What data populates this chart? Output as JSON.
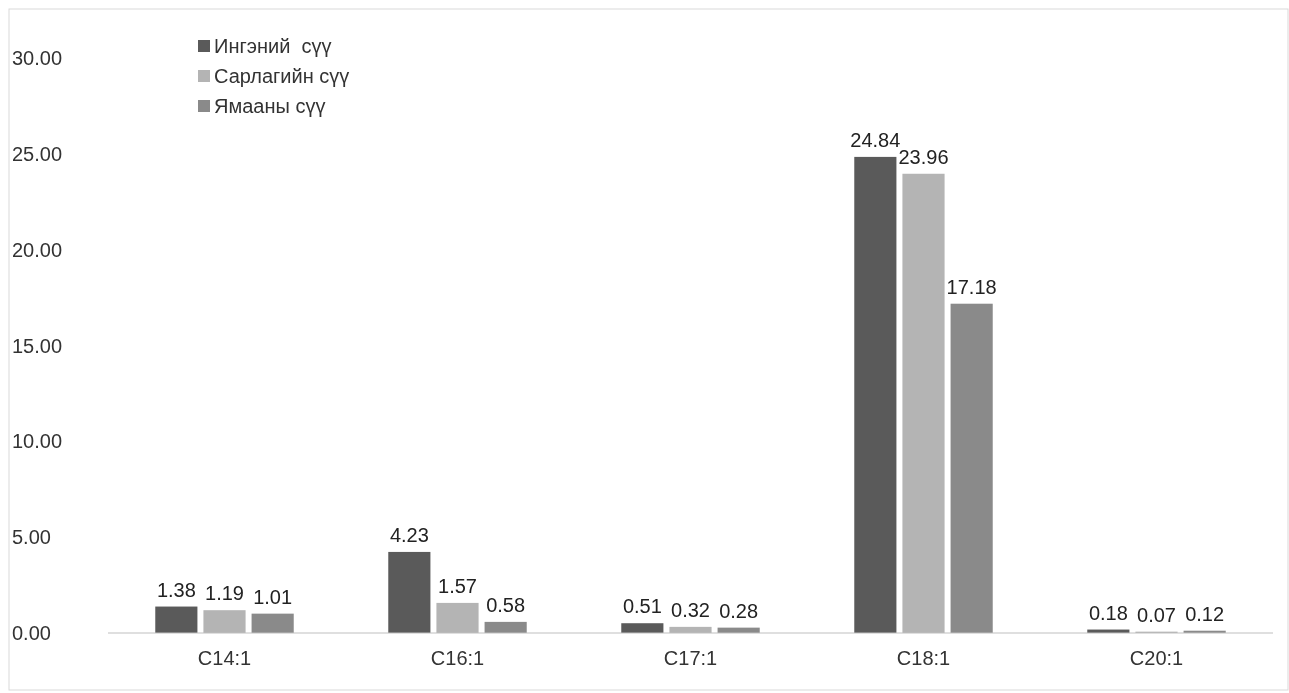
{
  "chart_data": {
    "type": "bar",
    "categories": [
      "C14:1",
      "C16:1",
      "C17:1",
      "C18:1",
      "C20:1"
    ],
    "series": [
      {
        "name": "Ингэний  сүү",
        "color": "#5a5a5a",
        "values": [
          1.38,
          4.23,
          0.51,
          24.84,
          0.18
        ]
      },
      {
        "name": "Сарлагийн сүү",
        "color": "#b4b4b4",
        "values": [
          1.19,
          1.57,
          0.32,
          23.96,
          0.07
        ]
      },
      {
        "name": "Ямааны сүү",
        "color": "#8a8a8a",
        "values": [
          1.01,
          0.58,
          0.28,
          17.18,
          0.12
        ]
      }
    ],
    "ylim": [
      0,
      30
    ],
    "yticks": [
      {
        "value": 0,
        "label": "0.00"
      },
      {
        "value": 5,
        "label": "5.00"
      },
      {
        "value": 10,
        "label": "10.00"
      },
      {
        "value": 15,
        "label": "15.00"
      },
      {
        "value": 20,
        "label": "20.00"
      },
      {
        "value": 25,
        "label": "25.00"
      },
      {
        "value": 30,
        "label": "30.00"
      }
    ],
    "data_labels": true,
    "legend": "top left",
    "grid": false
  }
}
